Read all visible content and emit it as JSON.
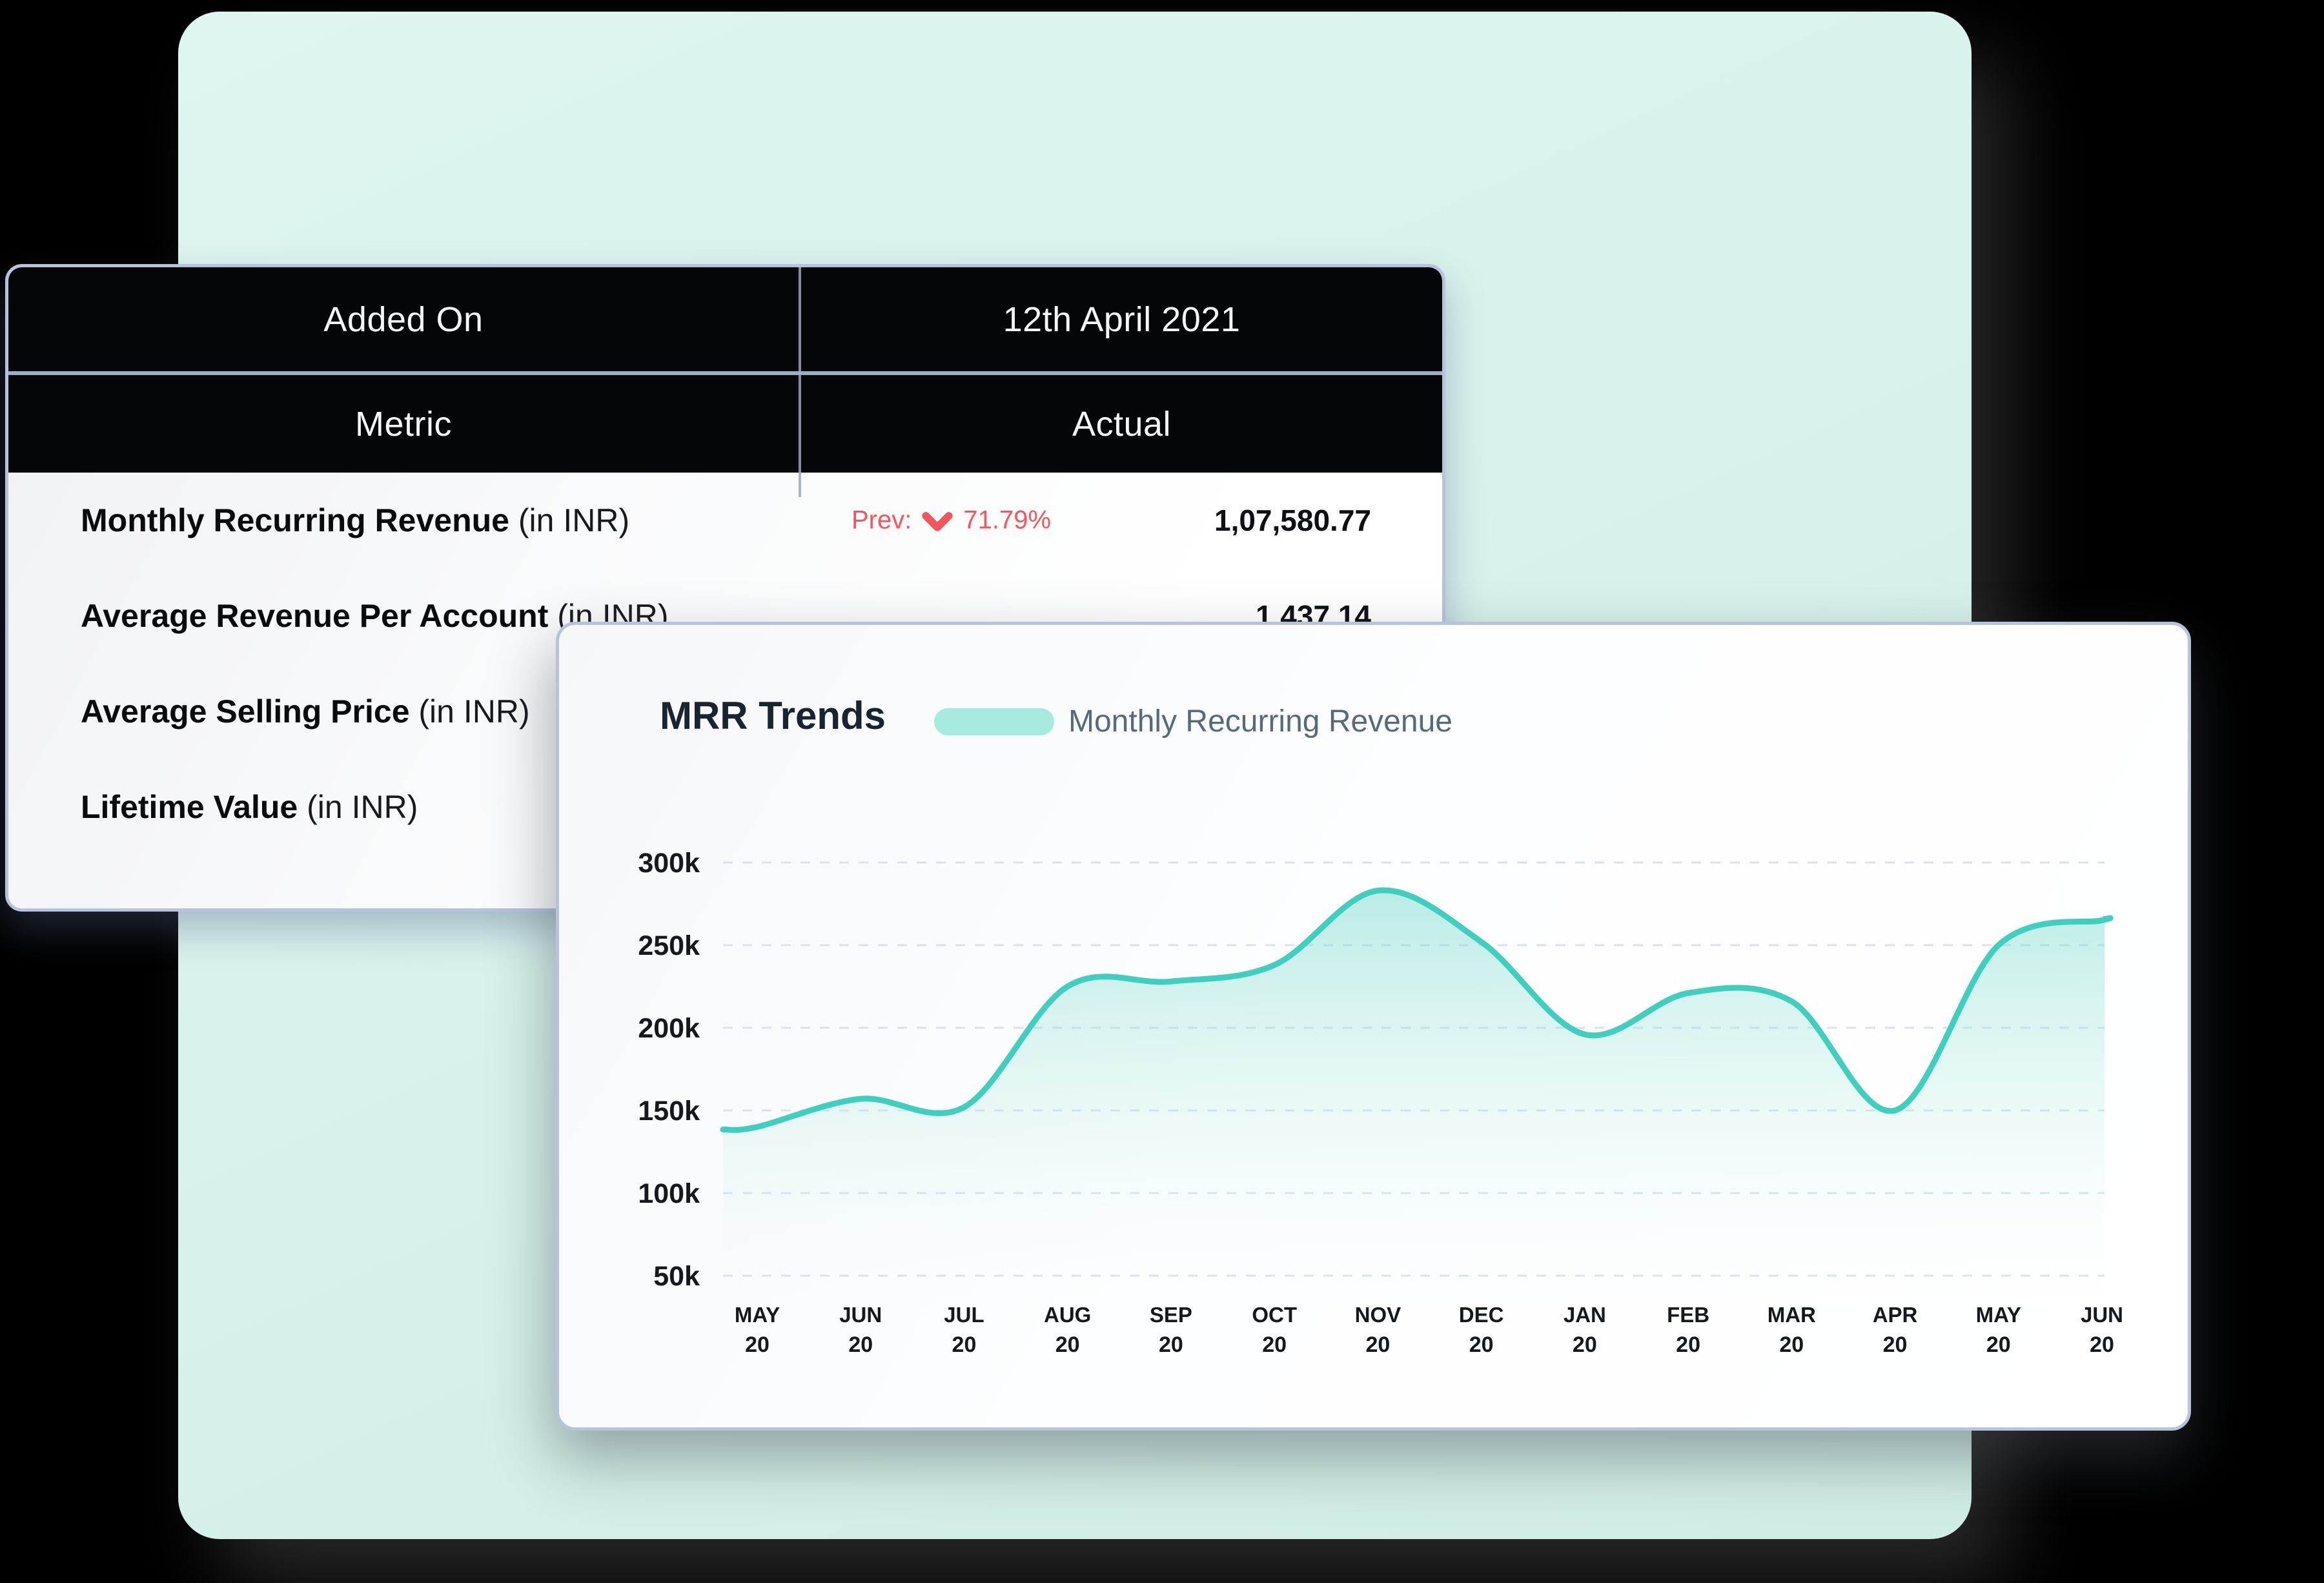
{
  "colors": {
    "page_background": "#000000",
    "mint_background": "#d8f1ec",
    "card_border": "#b7c3da",
    "table_header_bg": "#04060a",
    "accent_teal_line": "#3ecfbf",
    "legend_pill_teal": "#a7eade",
    "negative_red": "#f2575e",
    "legend_text": "#57697e"
  },
  "table": {
    "header": {
      "added_on_label": "Added On",
      "date": "12th April 2021",
      "metric_label": "Metric",
      "actual_label": "Actual"
    },
    "rows": [
      {
        "metric": "Monthly Recurring Revenue",
        "unit": "(in INR)",
        "prev_label": "Prev:",
        "prev_direction": "down",
        "prev_change": "71.79%",
        "actual": "1,07,580.77"
      },
      {
        "metric": "Average Revenue Per Account",
        "unit": "(in INR)",
        "actual": "1,437.14"
      },
      {
        "metric": "Average Selling Price",
        "unit": "(in INR)"
      },
      {
        "metric": "Lifetime Value",
        "unit": "(in INR)"
      }
    ]
  },
  "chart_data": {
    "type": "area",
    "title": "MRR Trends",
    "legend": [
      "Monthly Recurring Revenue"
    ],
    "legend_position": "top",
    "categories": [
      "MAY 20",
      "JUN 20",
      "JUL 20",
      "AUG 20",
      "SEP 20",
      "OCT 20",
      "NOV 20",
      "DEC 20",
      "JAN 20",
      "FEB 20",
      "MAR 20",
      "APR 20",
      "MAY 20",
      "JUN 20"
    ],
    "values": [
      140000,
      157000,
      152000,
      225000,
      228000,
      238000,
      283000,
      252000,
      196000,
      221000,
      216000,
      150000,
      250000,
      265000
    ],
    "ylabel_ticks": [
      "300k",
      "250k",
      "200k",
      "150k",
      "100k",
      "50k"
    ],
    "ylim": [
      50000,
      300000
    ],
    "grid": "dashed-horizontal",
    "line_color": "#3ecfbf",
    "fill": "teal-gradient-fade-to-white"
  }
}
